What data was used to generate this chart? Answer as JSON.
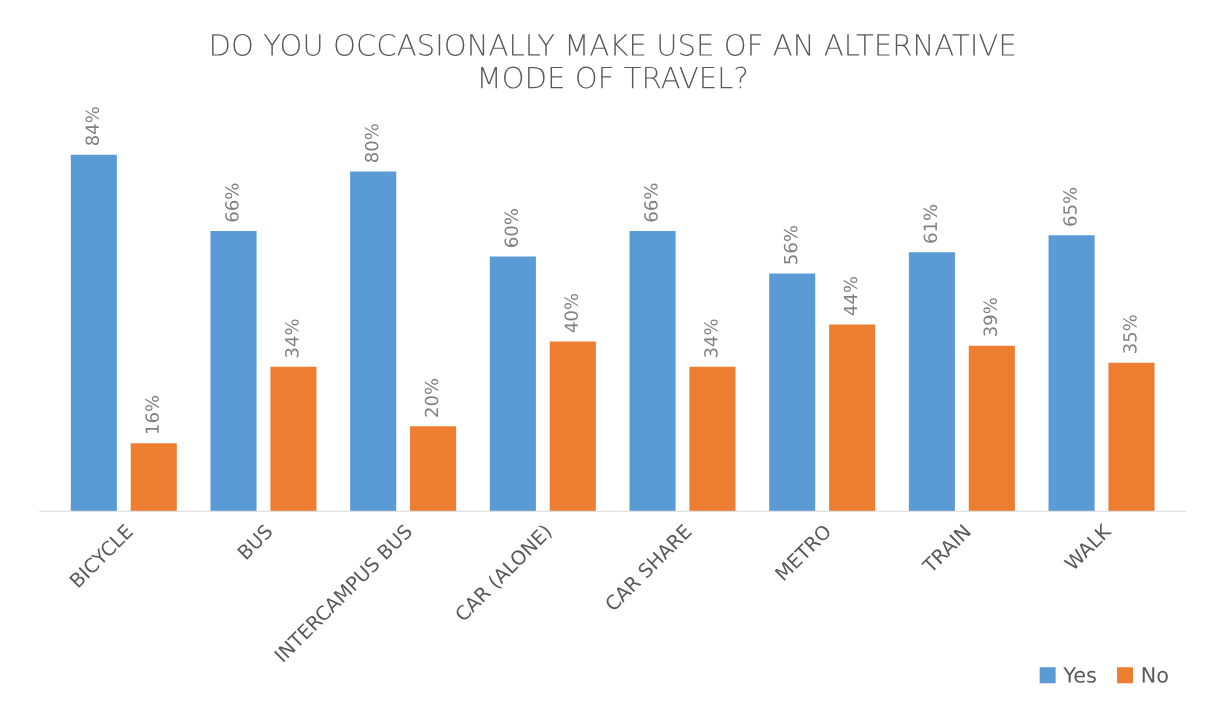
{
  "chart_data": {
    "type": "bar",
    "title": "DO YOU OCCASIONALLY MAKE USE OF AN ALTERNATIVE\nMODE OF TRAVEL?",
    "categories": [
      "BICYCLE",
      "BUS",
      "INTERCAMPUS BUS",
      "CAR (ALONE)",
      "CAR SHARE",
      "METRO",
      "TRAIN",
      "WALK"
    ],
    "series": [
      {
        "name": "Yes",
        "color": "#5b9bd5",
        "values": [
          84,
          66,
          80,
          60,
          66,
          56,
          61,
          65
        ],
        "value_labels": [
          "84%",
          "66%",
          "80%",
          "60%",
          "66%",
          "56%",
          "61%",
          "65%"
        ]
      },
      {
        "name": "No",
        "color": "#ed7d31",
        "values": [
          16,
          34,
          20,
          40,
          34,
          44,
          39,
          35
        ],
        "value_labels": [
          "16%",
          "34%",
          "20%",
          "40%",
          "34%",
          "44%",
          "39%",
          "35%"
        ]
      }
    ],
    "legend": "bottom right"
  }
}
